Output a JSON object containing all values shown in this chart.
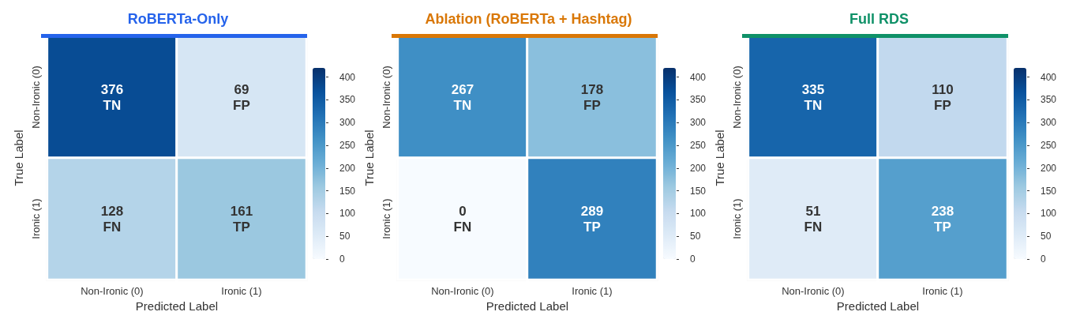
{
  "chart_data": [
    {
      "type": "heatmap",
      "title": "RoBERTa-Only",
      "xlabel": "Predicted Label",
      "ylabel": "True Label",
      "categories": [
        "Non-Ironic (0)",
        "Ironic (1)"
      ],
      "y_categories": [
        "Non-Ironic (0)",
        "Ironic (1)"
      ],
      "cells": [
        [
          376,
          69
        ],
        [
          128,
          161
        ]
      ],
      "cell_labels": [
        [
          "376\nTN",
          "69\nFP"
        ],
        [
          "128\nFN",
          "161\nTP"
        ]
      ],
      "clim": [
        0,
        420
      ],
      "cticks": [
        0,
        50,
        100,
        150,
        200,
        250,
        300,
        350,
        400
      ]
    },
    {
      "type": "heatmap",
      "title": "Ablation (RoBERTa + Hashtag)",
      "xlabel": "Predicted Label",
      "ylabel": "True Label",
      "categories": [
        "Non-Ironic (0)",
        "Ironic (1)"
      ],
      "y_categories": [
        "Non-Ironic (0)",
        "Ironic (1)"
      ],
      "cells": [
        [
          267,
          178
        ],
        [
          0,
          289
        ]
      ],
      "cell_labels": [
        [
          "267\nTN",
          "178\nFP"
        ],
        [
          "0\nFN",
          "289\nTP"
        ]
      ],
      "clim": [
        0,
        420
      ],
      "cticks": [
        0,
        50,
        100,
        150,
        200,
        250,
        300,
        350,
        400
      ]
    },
    {
      "type": "heatmap",
      "title": "Full RDS",
      "xlabel": "Predicted Label",
      "ylabel": "True Label",
      "categories": [
        "Non-Ironic (0)",
        "Ironic (1)"
      ],
      "y_categories": [
        "Non-Ironic (0)",
        "Ironic (1)"
      ],
      "cells": [
        [
          335,
          110
        ],
        [
          51,
          238
        ]
      ],
      "cell_labels": [
        [
          "335\nTN",
          "110\nFP"
        ],
        [
          "51\nFN",
          "238\nTP"
        ]
      ],
      "clim": [
        0,
        420
      ],
      "cticks": [
        0,
        50,
        100,
        150,
        200,
        250,
        300,
        350,
        400
      ]
    }
  ]
}
